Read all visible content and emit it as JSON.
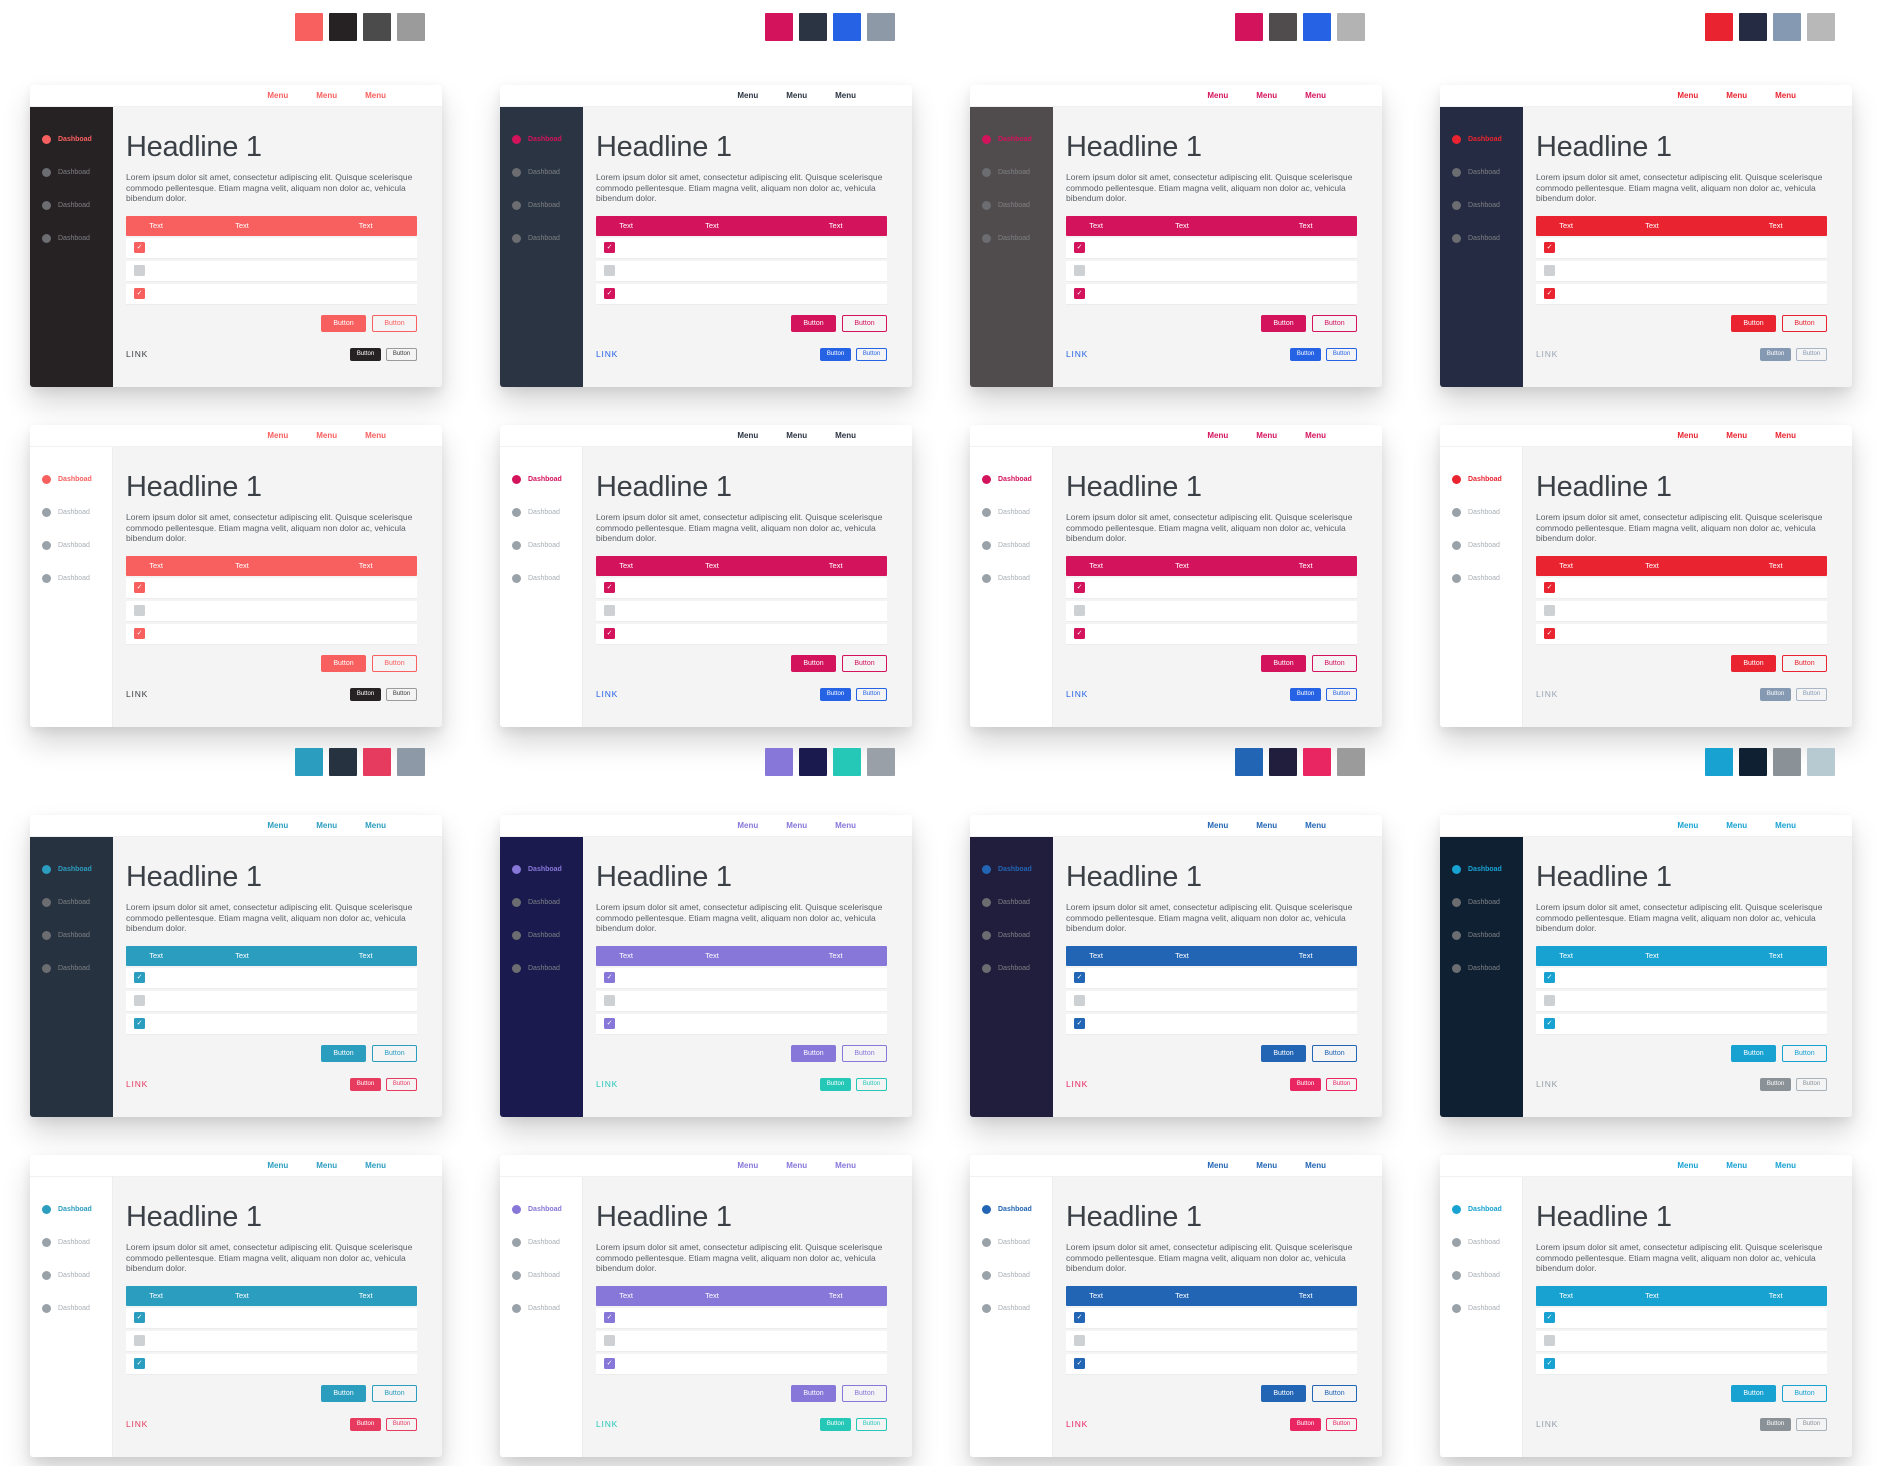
{
  "common": {
    "menu": [
      "Menu",
      "Menu",
      "Menu"
    ],
    "sidebar_items": [
      "Dashboad",
      "Dashboad",
      "Dashboad",
      "Dashboad"
    ],
    "headline": "Headline 1",
    "paragraph": "Lorem ipsum dolor sit amet, consectetur adipiscing elit. Quisque scelerisque commodo pellentesque. Etiam magna velit, aliquam non dolor ac, vehicula bibendum dolor.",
    "table_headers": [
      "Text",
      "Text",
      "Text"
    ],
    "rows_checked": [
      true,
      false,
      true
    ],
    "check_glyph": "✓",
    "primary_buttons": [
      "Button",
      "Button"
    ],
    "secondary_buttons": [
      "Button",
      "Button"
    ],
    "link": "LINK"
  },
  "groups": [
    {
      "themes": [
        {
          "palette": [
            "#f8605f",
            "#262123",
            "#4b4b4b",
            "#9b9b9b"
          ],
          "accent": "#f8605f",
          "sidebar": "#262123",
          "menu": "#f8605f",
          "link": "#3d4045",
          "secondary": {
            "filled_bg": "#262123",
            "filled_text": "#ffffff",
            "outline_border": "#9b9b9b",
            "outline_text": "#3a3a3a"
          }
        },
        {
          "palette": [
            "#d3135c",
            "#2b3442",
            "#2563e4",
            "#8d99a6"
          ],
          "accent": "#d3135c",
          "sidebar": "#2b3442",
          "menu": "#2b3442",
          "link": "#2563e4",
          "secondary": {
            "filled_bg": "#2563e4",
            "filled_text": "#ffffff",
            "outline_border": "#2563e4",
            "outline_text": "#2563e4"
          }
        },
        {
          "palette": [
            "#d3135c",
            "#504c4d",
            "#2563e4",
            "#b3b3b3"
          ],
          "accent": "#d3135c",
          "sidebar": "#504c4d",
          "menu": "#d3135c",
          "link": "#2563e4",
          "secondary": {
            "filled_bg": "#2563e4",
            "filled_text": "#ffffff",
            "outline_border": "#2563e4",
            "outline_text": "#2563e4"
          }
        },
        {
          "palette": [
            "#e92430",
            "#252b42",
            "#8599b3",
            "#b8b8b8"
          ],
          "accent": "#e92430",
          "sidebar": "#252b42",
          "menu": "#e92430",
          "link": "#9aa5b3",
          "secondary": {
            "filled_bg": "#8599b3",
            "filled_text": "#ffffff",
            "outline_border": "#a9b6c6",
            "outline_text": "#8599b3"
          }
        }
      ]
    },
    {
      "themes": [
        {
          "palette": [
            "#2b9dbf",
            "#273241",
            "#e73a5f",
            "#8d99a6"
          ],
          "accent": "#2b9dbf",
          "sidebar": "#273241",
          "menu": "#2b9dbf",
          "link": "#e73a5f",
          "secondary": {
            "filled_bg": "#e73a5f",
            "filled_text": "#ffffff",
            "outline_border": "#e73a5f",
            "outline_text": "#e73a5f"
          }
        },
        {
          "palette": [
            "#8677d9",
            "#1a1a4e",
            "#25c7b7",
            "#9aa0a8"
          ],
          "accent": "#8677d9",
          "sidebar": "#1a1a4e",
          "menu": "#8677d9",
          "link": "#25c7b7",
          "secondary": {
            "filled_bg": "#25c7b7",
            "filled_text": "#ffffff",
            "outline_border": "#25c7b7",
            "outline_text": "#25c7b7"
          }
        },
        {
          "palette": [
            "#2265b5",
            "#211d3d",
            "#e92562",
            "#9b9b9b"
          ],
          "accent": "#2265b5",
          "sidebar": "#211d3d",
          "menu": "#2265b5",
          "link": "#e92562",
          "secondary": {
            "filled_bg": "#e92562",
            "filled_text": "#ffffff",
            "outline_border": "#e92562",
            "outline_text": "#e92562"
          }
        },
        {
          "palette": [
            "#17a2d2",
            "#0f2033",
            "#8a9297",
            "#b7c9d1"
          ],
          "accent": "#17a2d2",
          "sidebar": "#0f2033",
          "menu": "#17a2d2",
          "link": "#949ea5",
          "secondary": {
            "filled_bg": "#8a9297",
            "filled_text": "#ffffff",
            "outline_border": "#a9b3b9",
            "outline_text": "#8a9297"
          }
        }
      ]
    }
  ]
}
